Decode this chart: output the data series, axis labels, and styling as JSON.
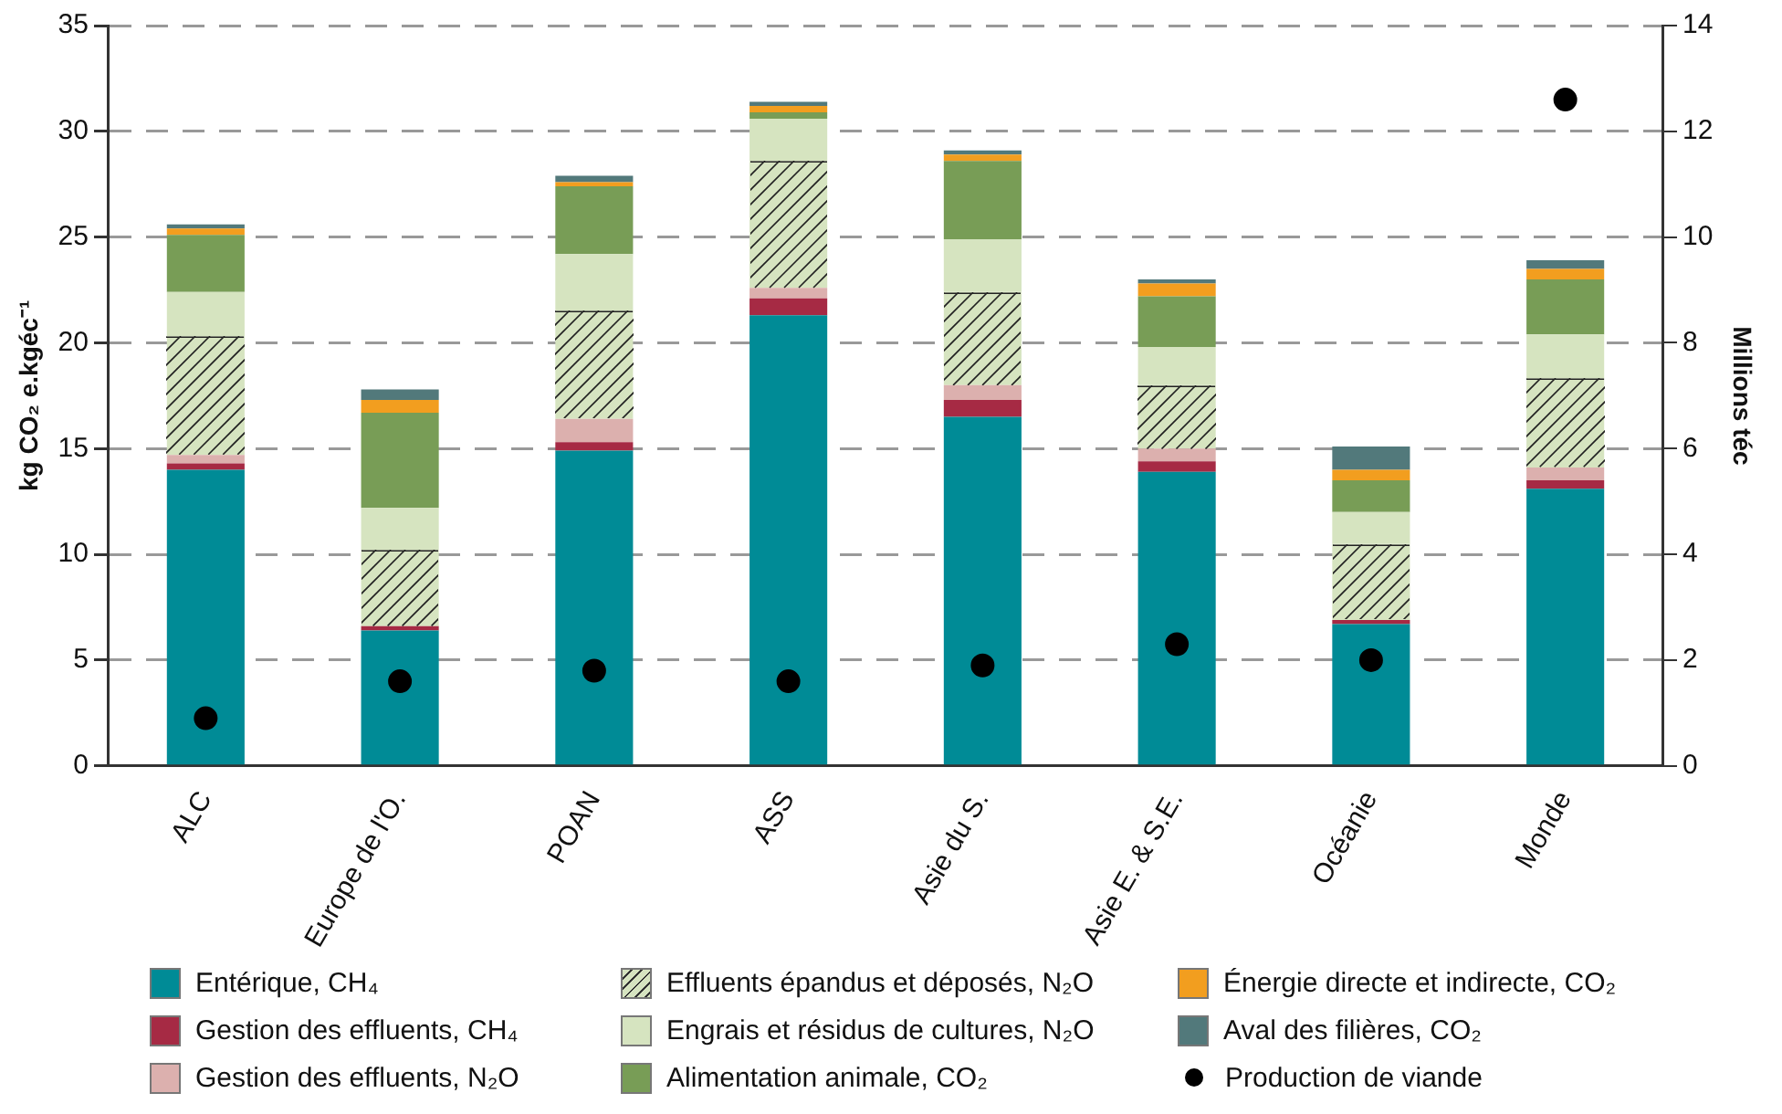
{
  "chart_data": {
    "type": "bar",
    "stacked": true,
    "ylabel": "kg CO₂ e.kgéc⁻¹",
    "y2label": "Millions téc",
    "categories": [
      "ALC",
      "Europe de l'O.",
      "POAN",
      "ASS",
      "Asie du S.",
      "Asie E. & S.E.",
      "Océanie",
      "Monde"
    ],
    "ylim": [
      0,
      35
    ],
    "yticks": [
      0,
      5,
      10,
      15,
      20,
      25,
      30,
      35
    ],
    "y2lim": [
      0,
      14
    ],
    "y2ticks": [
      0,
      2,
      4,
      6,
      8,
      10,
      12,
      14
    ],
    "grid": "y",
    "legend": "bottom",
    "series": [
      {
        "name": "Entérique, CH₄",
        "color": "#008b96",
        "values": [
          14.0,
          6.4,
          14.9,
          21.3,
          16.5,
          13.9,
          6.7,
          13.1
        ]
      },
      {
        "name": "Gestion des effluents, CH₄",
        "color": "#a62a44",
        "values": [
          0.3,
          0.2,
          0.4,
          0.8,
          0.8,
          0.5,
          0.2,
          0.4
        ]
      },
      {
        "name": "Gestion des effluents, N₂O",
        "color": "#dcb0ae",
        "values": [
          0.4,
          null,
          1.1,
          0.5,
          0.7,
          0.6,
          null,
          0.6
        ]
      },
      {
        "name": "Effluents épandus et déposés, N₂O",
        "color": "#d6e4c0",
        "values": [
          5.6,
          3.6,
          5.1,
          6.0,
          4.4,
          3.0,
          3.6,
          4.2
        ]
      },
      {
        "name": "Engrais et résidus de cultures, N₂O",
        "color": "#d6e4c0",
        "values": [
          2.1,
          2.0,
          2.7,
          2.0,
          2.5,
          1.8,
          1.5,
          2.1
        ]
      },
      {
        "name": "Alimentation animale, CO₂",
        "color": "#789d56",
        "values": [
          2.7,
          4.5,
          3.2,
          0.3,
          3.7,
          2.4,
          1.5,
          2.6
        ]
      },
      {
        "name": "Énergie directe et indirecte, CO₂",
        "color": "#f29e1f",
        "values": [
          0.3,
          0.6,
          0.2,
          0.3,
          0.3,
          0.6,
          0.5,
          0.5
        ]
      },
      {
        "name": "Aval des filières, CO₂",
        "color": "#52797b",
        "values": [
          0.2,
          0.5,
          0.3,
          0.2,
          0.2,
          0.2,
          1.1,
          0.4
        ]
      },
      {
        "name": "Production de viande",
        "type": "scatter",
        "axis": "y2",
        "marker": "circle",
        "color": "#000000",
        "x": [
          "ALC",
          "Europe de l'O.",
          "POAN",
          "ASS",
          "Asie du S.",
          "Asie E. & S.E.",
          "Océanie",
          "Monde"
        ],
        "values": [
          0.9,
          1.6,
          1.8,
          1.6,
          1.9,
          2.3,
          2.0,
          12.6
        ]
      }
    ]
  }
}
